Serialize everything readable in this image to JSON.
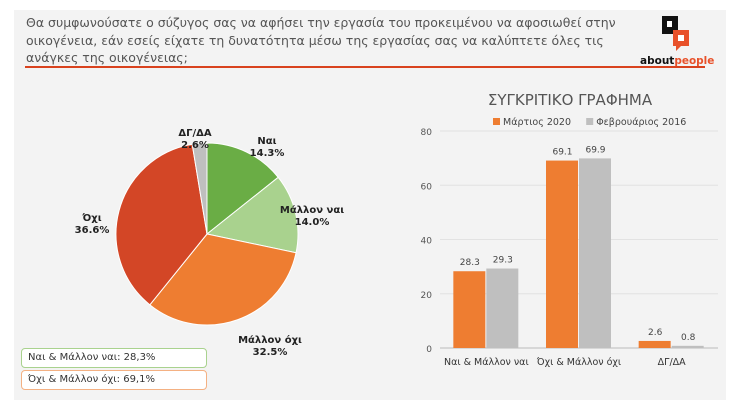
{
  "question": "Θα συμφωνούσατε ο σύζυγος σας να αφήσει την εργασία του προκειμένου να αφοσιωθεί στην οικογένεια, εάν εσείς είχατε τη δυνατότητα μέσω της εργασίας σας να καλύπτετε όλες τις ανάγκες της οικογένειας;",
  "logo": {
    "part1": "about",
    "part2": "people"
  },
  "summary": {
    "yes": "Ναι & Μάλλον ναι: 28,3%",
    "no": "Όχι & Μάλλον όχι: 69,1%"
  },
  "chart_data": [
    {
      "type": "pie",
      "slices": [
        {
          "label": "Ναι",
          "value": 14.3,
          "display": "14.3%",
          "color": "#6aad45"
        },
        {
          "label": "Μάλλον ναι",
          "value": 14.0,
          "display": "14.0%",
          "color": "#a9d28e"
        },
        {
          "label": "Μάλλον όχι",
          "value": 32.5,
          "display": "32.5%",
          "color": "#ee7d31"
        },
        {
          "label": "Όχι",
          "value": 36.6,
          "display": "36.6%",
          "color": "#d34626"
        },
        {
          "label": "ΔΓ/ΔΑ",
          "value": 2.6,
          "display": "2.6%",
          "color": "#bfbfbf"
        }
      ]
    },
    {
      "type": "bar",
      "title": "ΣΥΓΚΡΙΤΙΚΟ ΓΡΑΦΗΜΑ",
      "categories": [
        "Ναι & Μάλλον ναι",
        "Όχι & Μάλλον όχι",
        "ΔΓ/ΔΑ"
      ],
      "series": [
        {
          "name": "Μάρτιος 2020",
          "values": [
            28.3,
            69.1,
            2.6
          ],
          "color": "#ee7d31"
        },
        {
          "name": "Φεβρουάριος 2016",
          "values": [
            29.3,
            69.9,
            0.8
          ],
          "color": "#bfbfbf"
        }
      ],
      "ylim": [
        0,
        80
      ],
      "yticks": [
        "0",
        "20",
        "40",
        "60",
        "80"
      ],
      "grid": true,
      "legend": "top"
    }
  ]
}
